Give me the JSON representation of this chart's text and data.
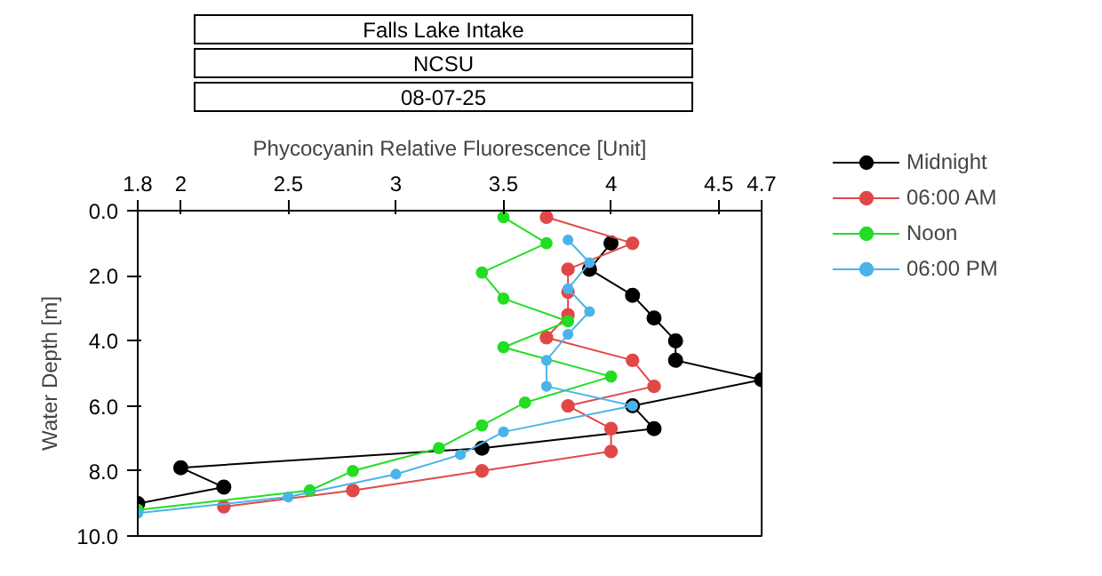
{
  "chart_data": {
    "type": "line",
    "title": "Falls Lake Intake",
    "subtitle": "NCSU",
    "annotations": [
      "08-07-25"
    ],
    "xlabel": "Phycocyanin Relative Fluorescence [Unit]",
    "ylabel": "Water Depth [m]",
    "xlim": [
      1.8,
      4.7
    ],
    "xticks": [
      1.8,
      2,
      2.5,
      3,
      3.5,
      4,
      4.5,
      4.7
    ],
    "ylim": [
      10,
      0
    ],
    "yticks": [
      {
        "value": 0,
        "label": "0.0"
      },
      {
        "value": 2,
        "label": "2.0"
      },
      {
        "value": 4,
        "label": "4.0"
      },
      {
        "value": 6,
        "label": "6.0"
      },
      {
        "value": 8,
        "label": "8.0"
      },
      {
        "value": 10,
        "label": "10.0"
      }
    ],
    "grid": false,
    "legend": "top right",
    "marker": "circle",
    "line_style": "solid",
    "series": [
      {
        "name": "Midnight",
        "color": "#000000",
        "x": [
          4.0,
          3.9,
          4.1,
          4.2,
          4.3,
          4.3,
          4.7,
          4.1,
          4.2,
          3.4,
          2.0,
          2.2,
          1.8
        ],
        "values": [
          1.0,
          1.8,
          2.6,
          3.3,
          4.0,
          4.6,
          5.2,
          6.0,
          6.7,
          7.3,
          7.9,
          8.5,
          9.0
        ]
      },
      {
        "name": "06:00 AM",
        "color": "#e04848",
        "x": [
          3.7,
          4.1,
          3.8,
          3.8,
          3.8,
          3.7,
          4.1,
          4.2,
          3.8,
          4.0,
          4.0,
          3.4,
          2.8,
          2.2
        ],
        "values": [
          0.2,
          1.0,
          1.8,
          2.5,
          3.2,
          3.9,
          4.6,
          5.4,
          6.0,
          6.7,
          7.4,
          8.0,
          8.6,
          9.1
        ]
      },
      {
        "name": "Noon",
        "color": "#22dd22",
        "x": [
          3.5,
          3.7,
          3.4,
          3.5,
          3.8,
          3.5,
          4.0,
          3.6,
          3.4,
          3.2,
          2.8,
          2.6,
          1.8
        ],
        "values": [
          0.2,
          1.0,
          1.9,
          2.7,
          3.4,
          4.2,
          5.1,
          5.9,
          6.6,
          7.3,
          8.0,
          8.6,
          9.2
        ]
      },
      {
        "name": "06:00 PM",
        "color": "#4ab4e8",
        "x": [
          3.8,
          3.9,
          3.8,
          3.9,
          3.8,
          3.7,
          3.7,
          4.1,
          3.5,
          3.3,
          3.0,
          2.5,
          1.8
        ],
        "values": [
          0.9,
          1.6,
          2.4,
          3.1,
          3.8,
          4.6,
          5.4,
          6.0,
          6.8,
          7.5,
          8.1,
          8.8,
          9.3
        ]
      }
    ]
  }
}
